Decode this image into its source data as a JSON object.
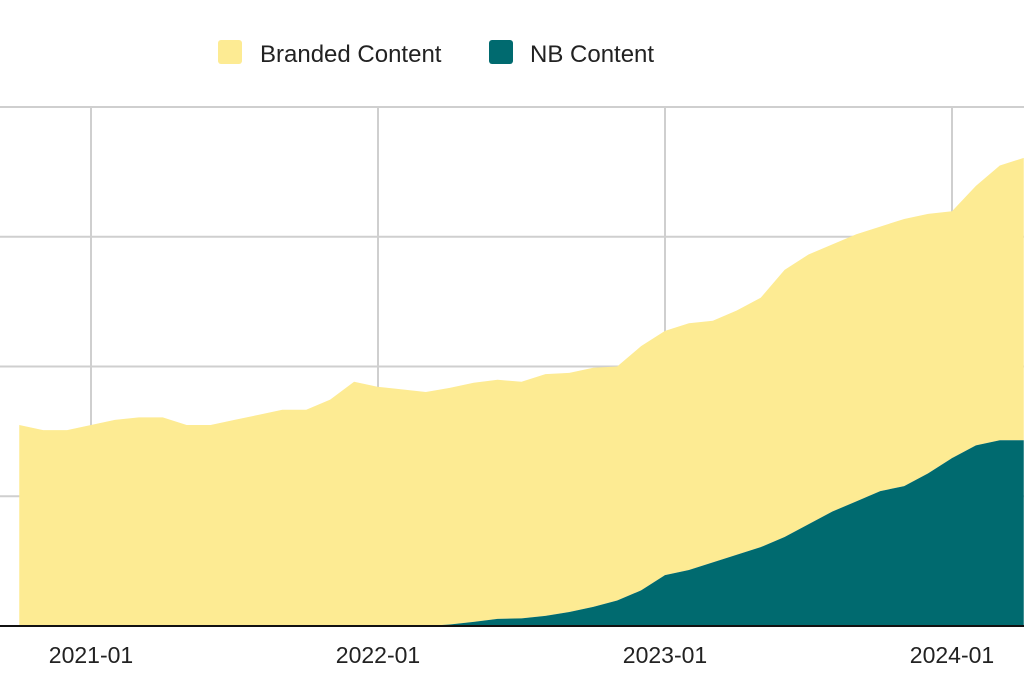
{
  "chart_data": {
    "type": "area",
    "stacked": true,
    "title": "",
    "xlabel": "",
    "ylabel": "",
    "grid": true,
    "legend": "top-center",
    "x_ticks": [
      "2021-01",
      "2022-01",
      "2023-01",
      "2024-01"
    ],
    "x": [
      "2020-10",
      "2020-11",
      "2020-12",
      "2021-01",
      "2021-02",
      "2021-03",
      "2021-04",
      "2021-05",
      "2021-06",
      "2021-07",
      "2021-08",
      "2021-09",
      "2021-10",
      "2021-11",
      "2021-12",
      "2022-01",
      "2022-02",
      "2022-03",
      "2022-04",
      "2022-05",
      "2022-06",
      "2022-07",
      "2022-08",
      "2022-09",
      "2022-10",
      "2022-11",
      "2022-12",
      "2023-01",
      "2023-02",
      "2023-03",
      "2023-04",
      "2023-05",
      "2023-06",
      "2023-07",
      "2023-08",
      "2023-09",
      "2023-10",
      "2023-11",
      "2023-12",
      "2024-01",
      "2024-02",
      "2024-03",
      "2024-04"
    ],
    "series": [
      {
        "name": "NB Content",
        "color": "#006a6f",
        "values": [
          0.0,
          0.0,
          0.0,
          0.0,
          0.0,
          0.0,
          0.0,
          0.0,
          0.0,
          0.0,
          0.0,
          0.0,
          0.0,
          0.0,
          0.0,
          0.0,
          0.0,
          0.0,
          0.06,
          0.16,
          0.28,
          0.3,
          0.4,
          0.55,
          0.75,
          1.0,
          1.4,
          2.0,
          2.2,
          2.5,
          2.8,
          3.1,
          3.5,
          4.0,
          4.5,
          4.9,
          5.3,
          5.5,
          6.0,
          6.6,
          7.1,
          7.3,
          7.3
        ]
      },
      {
        "name": "Branded Content",
        "color": "#fdeb93",
        "values": [
          7.9,
          7.7,
          7.7,
          7.9,
          8.1,
          8.2,
          8.2,
          7.9,
          7.9,
          8.1,
          8.3,
          8.5,
          8.5,
          8.9,
          9.6,
          9.4,
          9.3,
          9.2,
          9.3,
          9.4,
          9.4,
          9.3,
          9.5,
          9.4,
          9.4,
          9.2,
          9.6,
          9.6,
          9.7,
          9.5,
          9.6,
          9.8,
          10.5,
          10.6,
          10.5,
          10.5,
          10.4,
          10.5,
          10.2,
          9.7,
          10.2,
          10.8,
          11.1
        ]
      }
    ]
  }
}
